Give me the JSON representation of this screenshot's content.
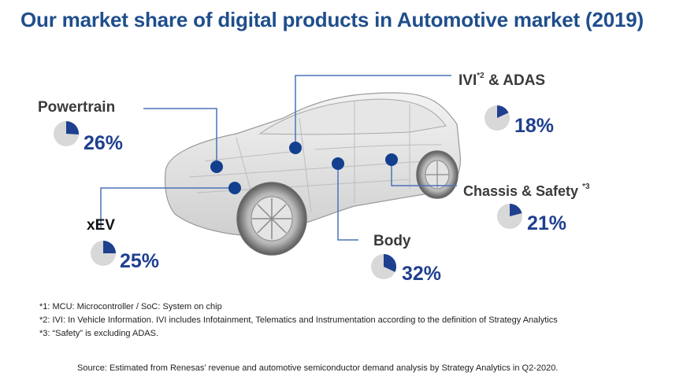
{
  "title": "Our market share of digital products in Automotive market (2019)",
  "colors": {
    "title": "#1f4e8c",
    "accent": "#1f3f8f",
    "line": "#4a72b8",
    "dot": "#123f8e",
    "pie_bg": "#d8d8d8"
  },
  "segments": [
    {
      "label": "Powertrain",
      "sup": "",
      "percent": 26
    },
    {
      "label": "IVI",
      "sup": "*2",
      "label_suffix": " & ADAS",
      "percent": 18
    },
    {
      "label": "Chassis & Safety ",
      "sup": "*3",
      "percent": 21
    },
    {
      "label": "xEV",
      "sup": "",
      "percent": 25
    },
    {
      "label": "Body",
      "sup": "",
      "percent": 32
    }
  ],
  "pct_text": [
    "26%",
    "18%",
    "21%",
    "25%",
    "32%"
  ],
  "footnotes": [
    "*1: MCU: Microcontroller / SoC: System on chip",
    "*2: IVI: In Vehicle Information. IVI includes Infotainment, Telematics and Instrumentation according to the definition of Strategy Analytics",
    "*3: “Safety” is excluding ADAS."
  ],
  "source": "Source: Estimated from Renesas’ revenue and automotive semiconductor demand analysis by Strategy Analytics in Q2-2020.",
  "image": {
    "name": "car-xray-illustration"
  }
}
